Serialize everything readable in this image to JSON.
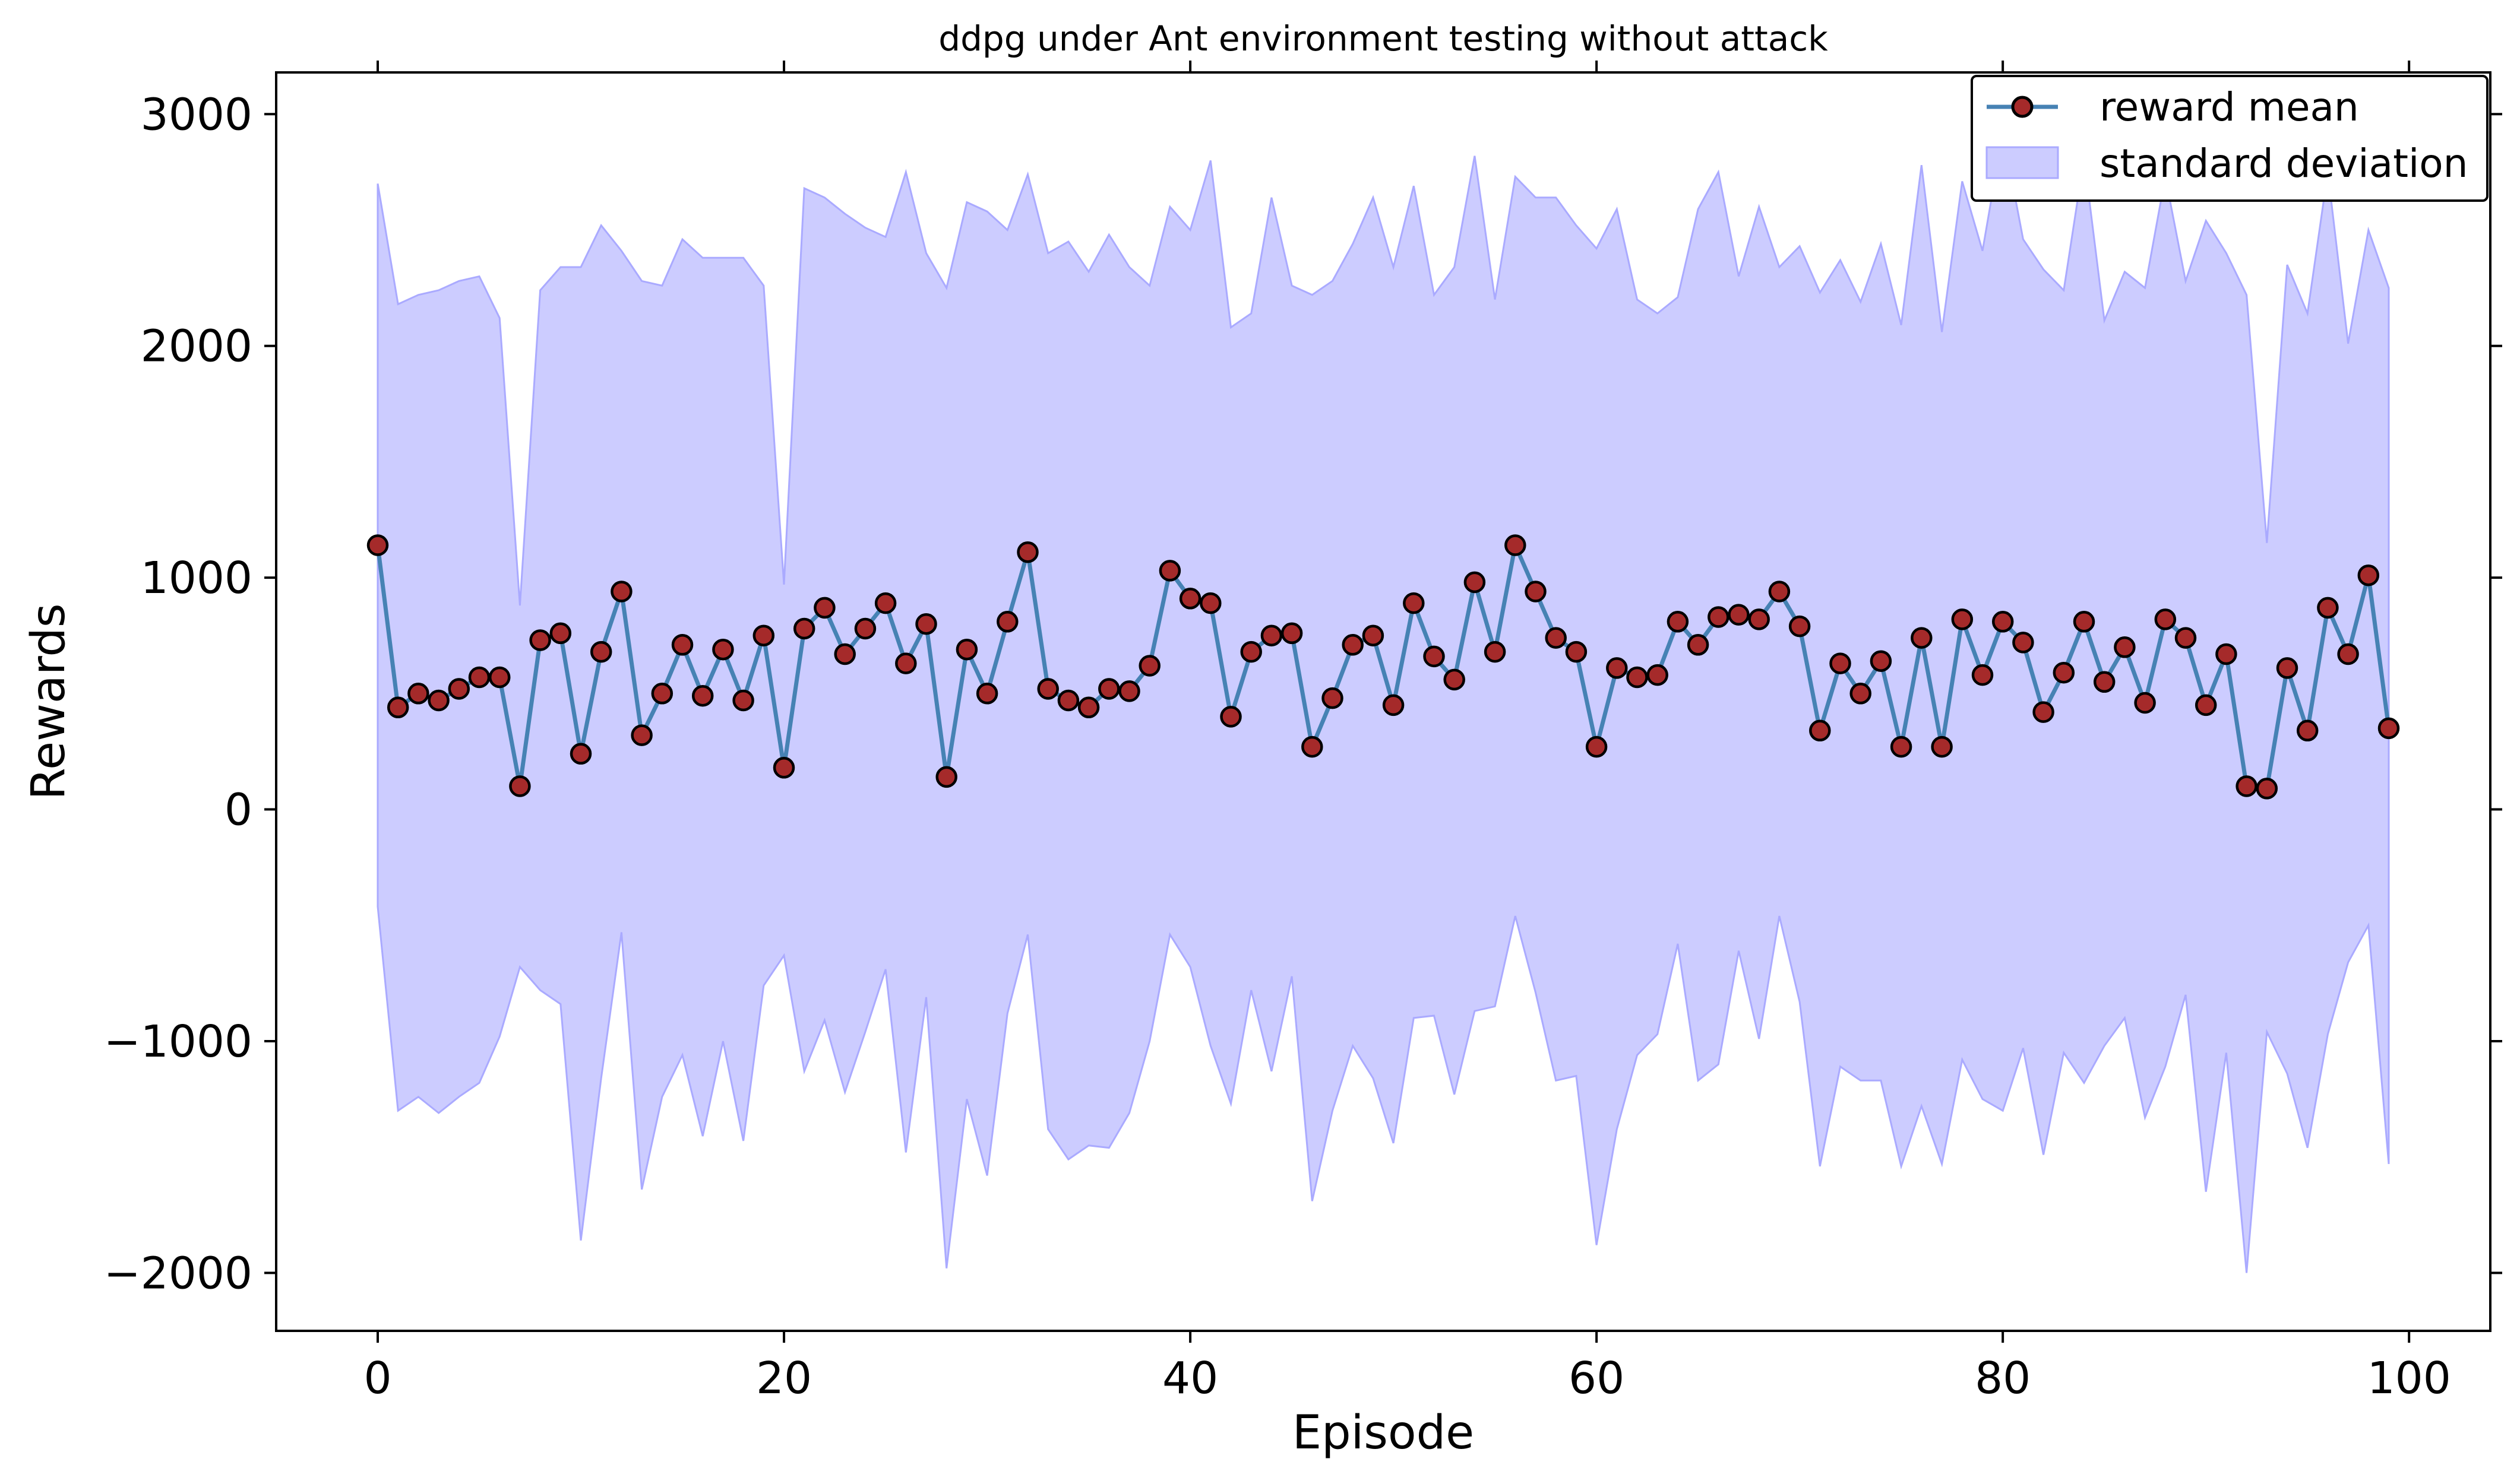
{
  "chart_data": {
    "type": "line",
    "title": "ddpg under Ant environment testing without attack",
    "xlabel": "Episode",
    "ylabel": "Rewards",
    "xlim": [
      -5,
      104
    ],
    "ylim": [
      -2250,
      3180
    ],
    "x_ticks": [
      0,
      20,
      40,
      60,
      80,
      100
    ],
    "y_ticks": [
      -2000,
      -1000,
      0,
      1000,
      2000,
      3000
    ],
    "x_tick_labels": [
      "0",
      "20",
      "40",
      "60",
      "80",
      "100"
    ],
    "y_tick_labels": [
      "−2000",
      "−1000",
      "0",
      "1000",
      "2000",
      "3000"
    ],
    "grid": false,
    "legend_position": "top-right",
    "legend": [
      "reward mean",
      "standard deviation"
    ],
    "colors": {
      "line": "#4682b4",
      "marker_fill": "#a52a2a",
      "marker_edge": "#000000",
      "band_fill": "#ccccff",
      "band_edge": "#aaaaff"
    },
    "series": [
      {
        "name": "reward mean",
        "x": [
          0,
          1,
          2,
          3,
          4,
          5,
          6,
          7,
          8,
          9,
          10,
          11,
          12,
          13,
          14,
          15,
          16,
          17,
          18,
          19,
          20,
          21,
          22,
          23,
          24,
          25,
          26,
          27,
          28,
          29,
          30,
          31,
          32,
          33,
          34,
          35,
          36,
          37,
          38,
          39,
          40,
          41,
          42,
          43,
          44,
          45,
          46,
          47,
          48,
          49,
          50,
          51,
          52,
          53,
          54,
          55,
          56,
          57,
          58,
          59,
          60,
          61,
          62,
          63,
          64,
          65,
          66,
          67,
          68,
          69,
          70,
          71,
          72,
          73,
          74,
          75,
          76,
          77,
          78,
          79,
          80,
          81,
          82,
          83,
          84,
          85,
          86,
          87,
          88,
          89,
          90,
          91,
          92,
          93,
          94,
          95,
          96,
          97,
          98,
          99
        ],
        "values": [
          1140,
          440,
          500,
          470,
          520,
          570,
          570,
          100,
          730,
          760,
          240,
          680,
          940,
          320,
          500,
          710,
          490,
          690,
          470,
          750,
          180,
          780,
          870,
          670,
          780,
          890,
          630,
          800,
          140,
          690,
          500,
          810,
          1110,
          520,
          470,
          440,
          520,
          510,
          620,
          1030,
          910,
          890,
          400,
          680,
          750,
          760,
          270,
          480,
          710,
          750,
          450,
          890,
          660,
          560,
          980,
          680,
          1140,
          940,
          740,
          680,
          270,
          610,
          570,
          580,
          810,
          710,
          830,
          840,
          820,
          940,
          790,
          340,
          630,
          500,
          640,
          270,
          740,
          270,
          820,
          580,
          810,
          720,
          420,
          590,
          810,
          550,
          700,
          460,
          820,
          740,
          450,
          670,
          100,
          90,
          610,
          340,
          870,
          670,
          1010,
          350
        ]
      },
      {
        "name": "standard deviation",
        "x": [
          0,
          1,
          2,
          3,
          4,
          5,
          6,
          7,
          8,
          9,
          10,
          11,
          12,
          13,
          14,
          15,
          16,
          17,
          18,
          19,
          20,
          21,
          22,
          23,
          24,
          25,
          26,
          27,
          28,
          29,
          30,
          31,
          32,
          33,
          34,
          35,
          36,
          37,
          38,
          39,
          40,
          41,
          42,
          43,
          44,
          45,
          46,
          47,
          48,
          49,
          50,
          51,
          52,
          53,
          54,
          55,
          56,
          57,
          58,
          59,
          60,
          61,
          62,
          63,
          64,
          65,
          66,
          67,
          68,
          69,
          70,
          71,
          72,
          73,
          74,
          75,
          76,
          77,
          78,
          79,
          80,
          81,
          82,
          83,
          84,
          85,
          86,
          87,
          88,
          89,
          90,
          91,
          92,
          93,
          94,
          95,
          96,
          97,
          98,
          99
        ],
        "upper": [
          2700,
          2180,
          2220,
          2240,
          2280,
          2300,
          2120,
          880,
          2240,
          2340,
          2340,
          2520,
          2410,
          2280,
          2260,
          2460,
          2380,
          2380,
          2380,
          2260,
          970,
          2680,
          2640,
          2570,
          2510,
          2470,
          2750,
          2400,
          2250,
          2620,
          2580,
          2500,
          2740,
          2400,
          2450,
          2320,
          2480,
          2340,
          2260,
          2600,
          2500,
          2800,
          2080,
          2140,
          2640,
          2260,
          2220,
          2280,
          2440,
          2640,
          2340,
          2690,
          2220,
          2340,
          2820,
          2200,
          2730,
          2640,
          2640,
          2520,
          2420,
          2590,
          2200,
          2140,
          2210,
          2590,
          2750,
          2300,
          2600,
          2340,
          2430,
          2230,
          2370,
          2190,
          2440,
          2090,
          2780,
          2060,
          2710,
          2410,
          2920,
          2460,
          2330,
          2240,
          2810,
          2110,
          2320,
          2250,
          2730,
          2280,
          2540,
          2400,
          2220,
          1150,
          2350,
          2140,
          2750,
          2010,
          2500,
          2250
        ],
        "lower": [
          -420,
          -1300,
          -1240,
          -1310,
          -1240,
          -1180,
          -980,
          -680,
          -780,
          -840,
          -1860,
          -1160,
          -530,
          -1640,
          -1240,
          -1060,
          -1410,
          -1000,
          -1430,
          -760,
          -630,
          -1130,
          -910,
          -1220,
          -960,
          -690,
          -1480,
          -810,
          -1980,
          -1250,
          -1580,
          -880,
          -540,
          -1380,
          -1510,
          -1450,
          -1460,
          -1310,
          -1000,
          -540,
          -680,
          -1020,
          -1270,
          -780,
          -1130,
          -720,
          -1690,
          -1300,
          -1020,
          -1160,
          -1440,
          -900,
          -890,
          -1230,
          -870,
          -850,
          -460,
          -790,
          -1170,
          -1150,
          -1880,
          -1380,
          -1060,
          -970,
          -580,
          -1170,
          -1100,
          -610,
          -990,
          -460,
          -830,
          -1540,
          -1110,
          -1170,
          -1170,
          -1540,
          -1280,
          -1530,
          -1080,
          -1250,
          -1300,
          -1030,
          -1490,
          -1050,
          -1180,
          -1020,
          -900,
          -1330,
          -1110,
          -800,
          -1650,
          -1050,
          -2000,
          -960,
          -1140,
          -1460,
          -970,
          -660,
          -500,
          -1530
        ]
      }
    ]
  }
}
